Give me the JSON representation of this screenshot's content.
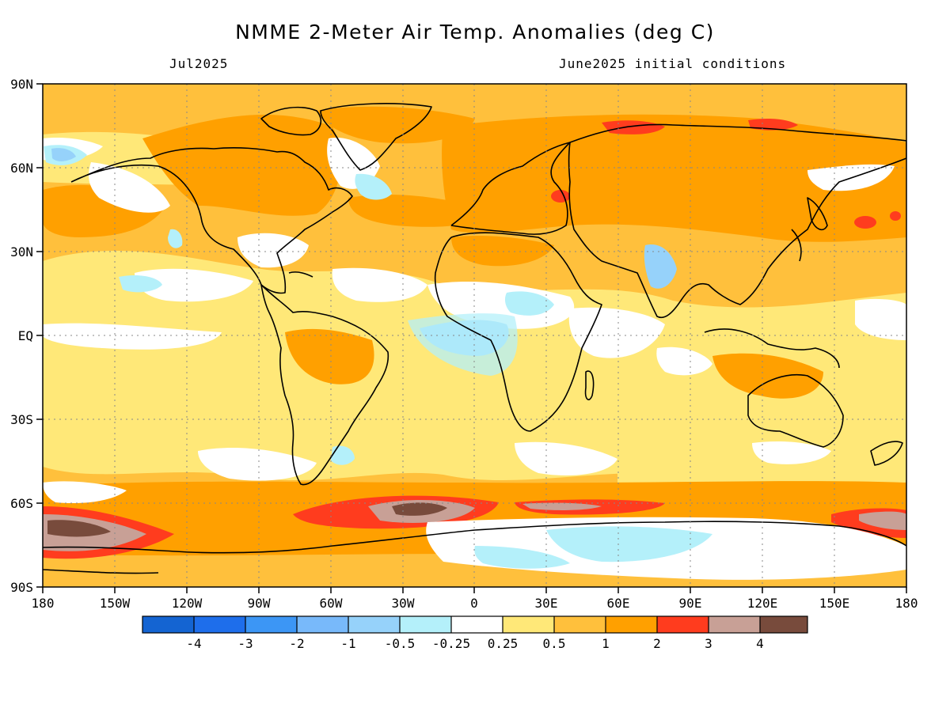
{
  "title": "NMME 2-Meter Air Temp. Anomalies (deg C)",
  "subtitle_left": "Jul2025",
  "subtitle_right": "June2025 initial conditions",
  "map": {
    "lon_labels": [
      "180",
      "150W",
      "120W",
      "90W",
      "60W",
      "30W",
      "0",
      "30E",
      "60E",
      "90E",
      "120E",
      "150E",
      "180"
    ],
    "lat_labels": [
      "90N",
      "60N",
      "30N",
      "EQ",
      "30S",
      "60S",
      "90S"
    ],
    "grid": "dotted"
  },
  "colorbar": {
    "colors": [
      "#1464d2",
      "#1e6eeb",
      "#3c96f5",
      "#78b9fa",
      "#96d2fa",
      "#b4f0fa",
      "#ffffff",
      "#ffe878",
      "#ffc03c",
      "#ffa000",
      "#ff3c1e",
      "#c8a096",
      "#784b3c"
    ],
    "labels": [
      "-4",
      "-3",
      "-2",
      "-1",
      "-0.5",
      "-0.25",
      "0.25",
      "0.5",
      "1",
      "2",
      "3",
      "4"
    ]
  }
}
